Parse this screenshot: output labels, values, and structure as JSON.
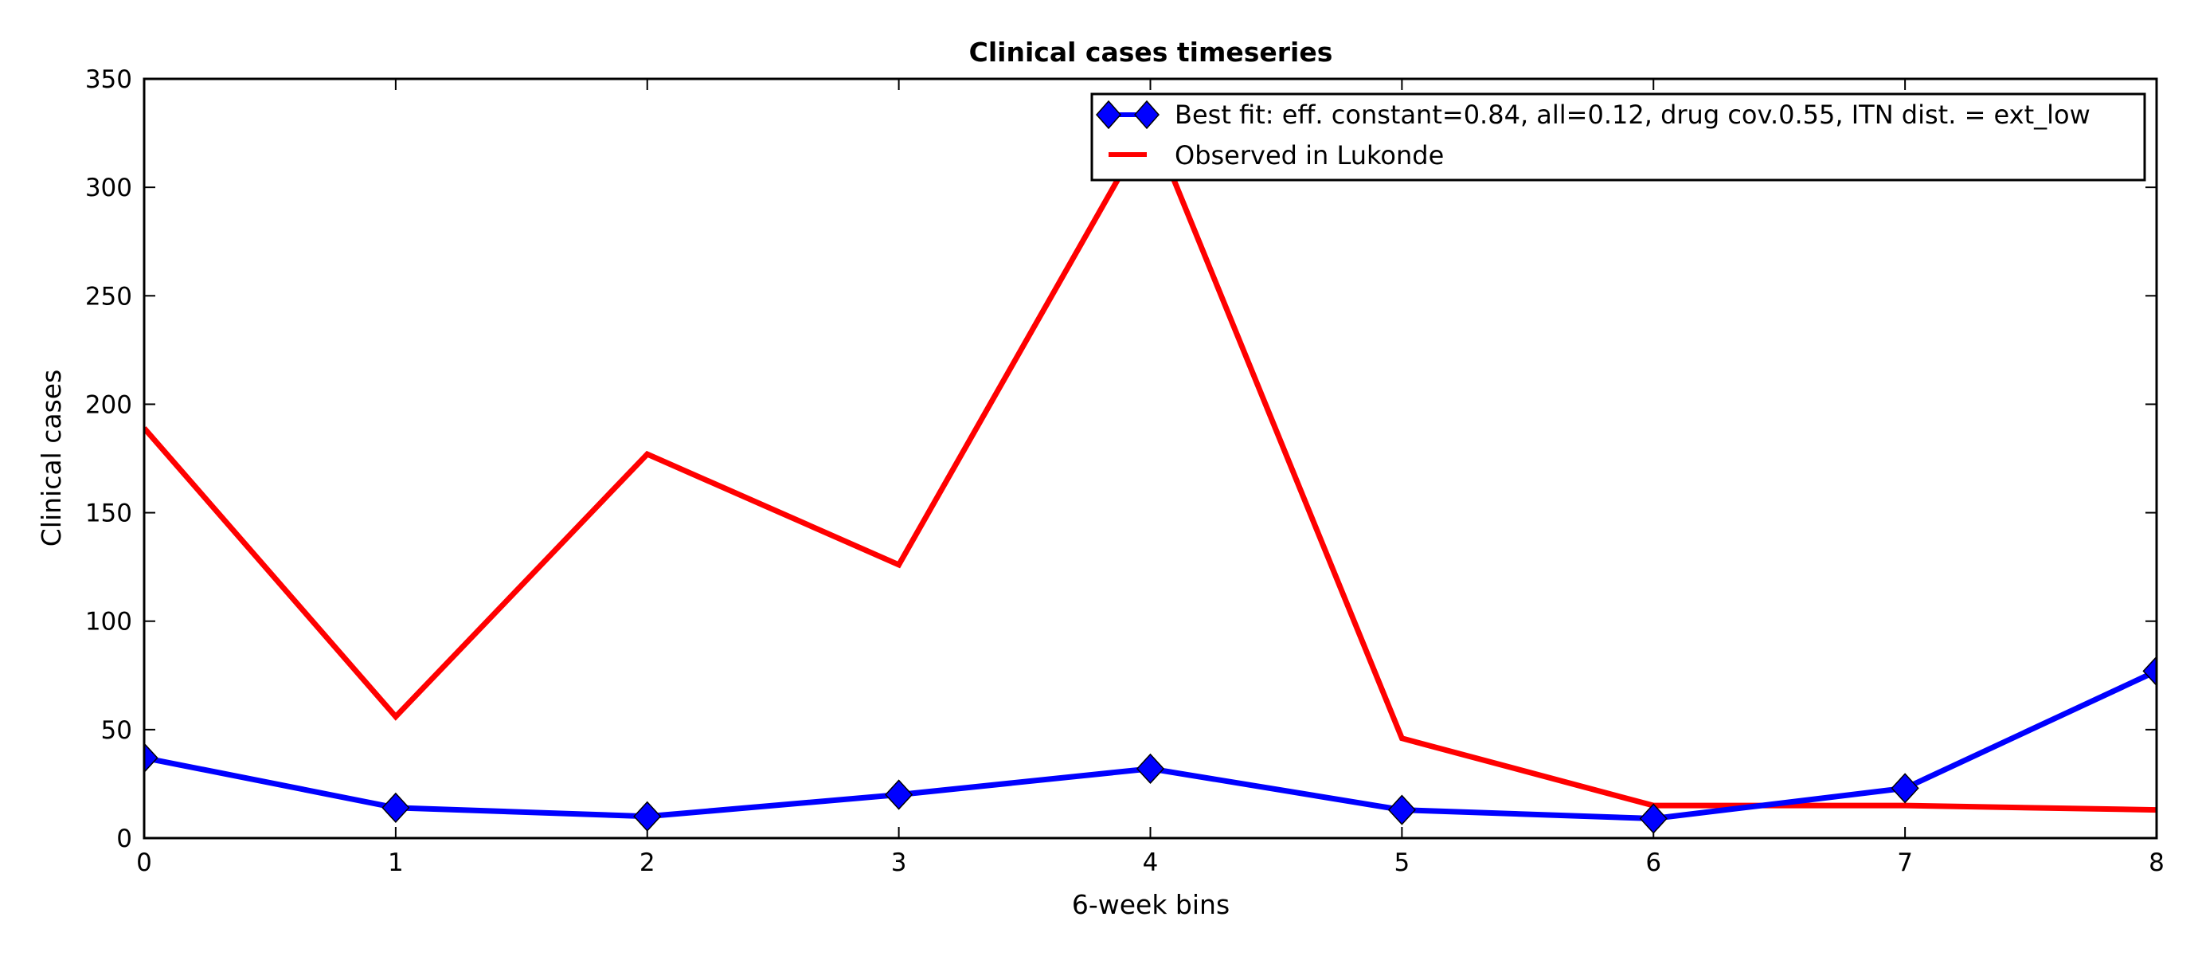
{
  "chart_data": {
    "type": "line",
    "title": "Clinical cases timeseries",
    "xlabel": "6-week bins",
    "ylabel": "Clinical cases",
    "x": [
      0,
      1,
      2,
      3,
      4,
      5,
      6,
      7,
      8
    ],
    "xlim": [
      0,
      8
    ],
    "ylim": [
      0,
      350
    ],
    "xticks": [
      0,
      1,
      2,
      3,
      4,
      5,
      6,
      7,
      8
    ],
    "yticks": [
      0,
      50,
      100,
      150,
      200,
      250,
      300,
      350
    ],
    "grid": false,
    "legend_position": "top-right",
    "series": [
      {
        "name": "Best fit: eff. constant=0.84, all=0.12, drug cov.0.55, ITN dist. = ext_low",
        "color": "#0000ff",
        "marker": "diamond",
        "values": [
          37,
          14,
          10,
          20,
          32,
          13,
          9,
          23,
          77
        ]
      },
      {
        "name": "Observed in Lukonde",
        "color": "#ff0000",
        "marker": "none",
        "values": [
          189,
          56,
          177,
          126,
          330,
          46,
          15,
          15,
          13
        ]
      }
    ]
  }
}
